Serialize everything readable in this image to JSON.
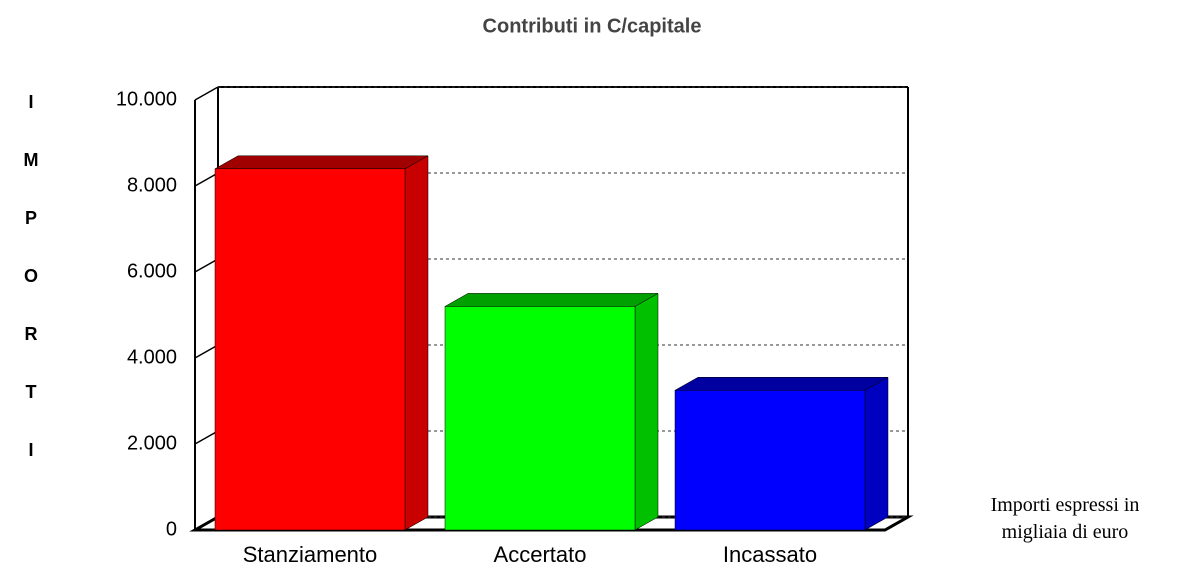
{
  "chart_data": {
    "type": "bar3d",
    "title": "Contributi in C/capitale",
    "ylabel": "IMPORTI",
    "annotation": "Importi espressi in migliaia di euro",
    "categories": [
      "Stanziamento",
      "Accertato",
      "Incassato"
    ],
    "values": [
      8400,
      5200,
      3250
    ],
    "colors": [
      "#ff0000",
      "#00ff00",
      "#0000ff"
    ],
    "side_colors": [
      "#c80000",
      "#00c000",
      "#0000c0"
    ],
    "top_colors": [
      "#a00000",
      "#00a000",
      "#0000a0"
    ],
    "ylim": [
      0,
      10000
    ],
    "yticks": [
      0,
      {
        "value": 2000,
        "label": "2.000"
      },
      {
        "value": 4000,
        "label": "4.000"
      },
      {
        "value": 6000,
        "label": "6.000"
      },
      {
        "value": 8000,
        "label": "8.000"
      },
      {
        "value": 10000,
        "label": "10.000"
      }
    ],
    "grid": true
  }
}
